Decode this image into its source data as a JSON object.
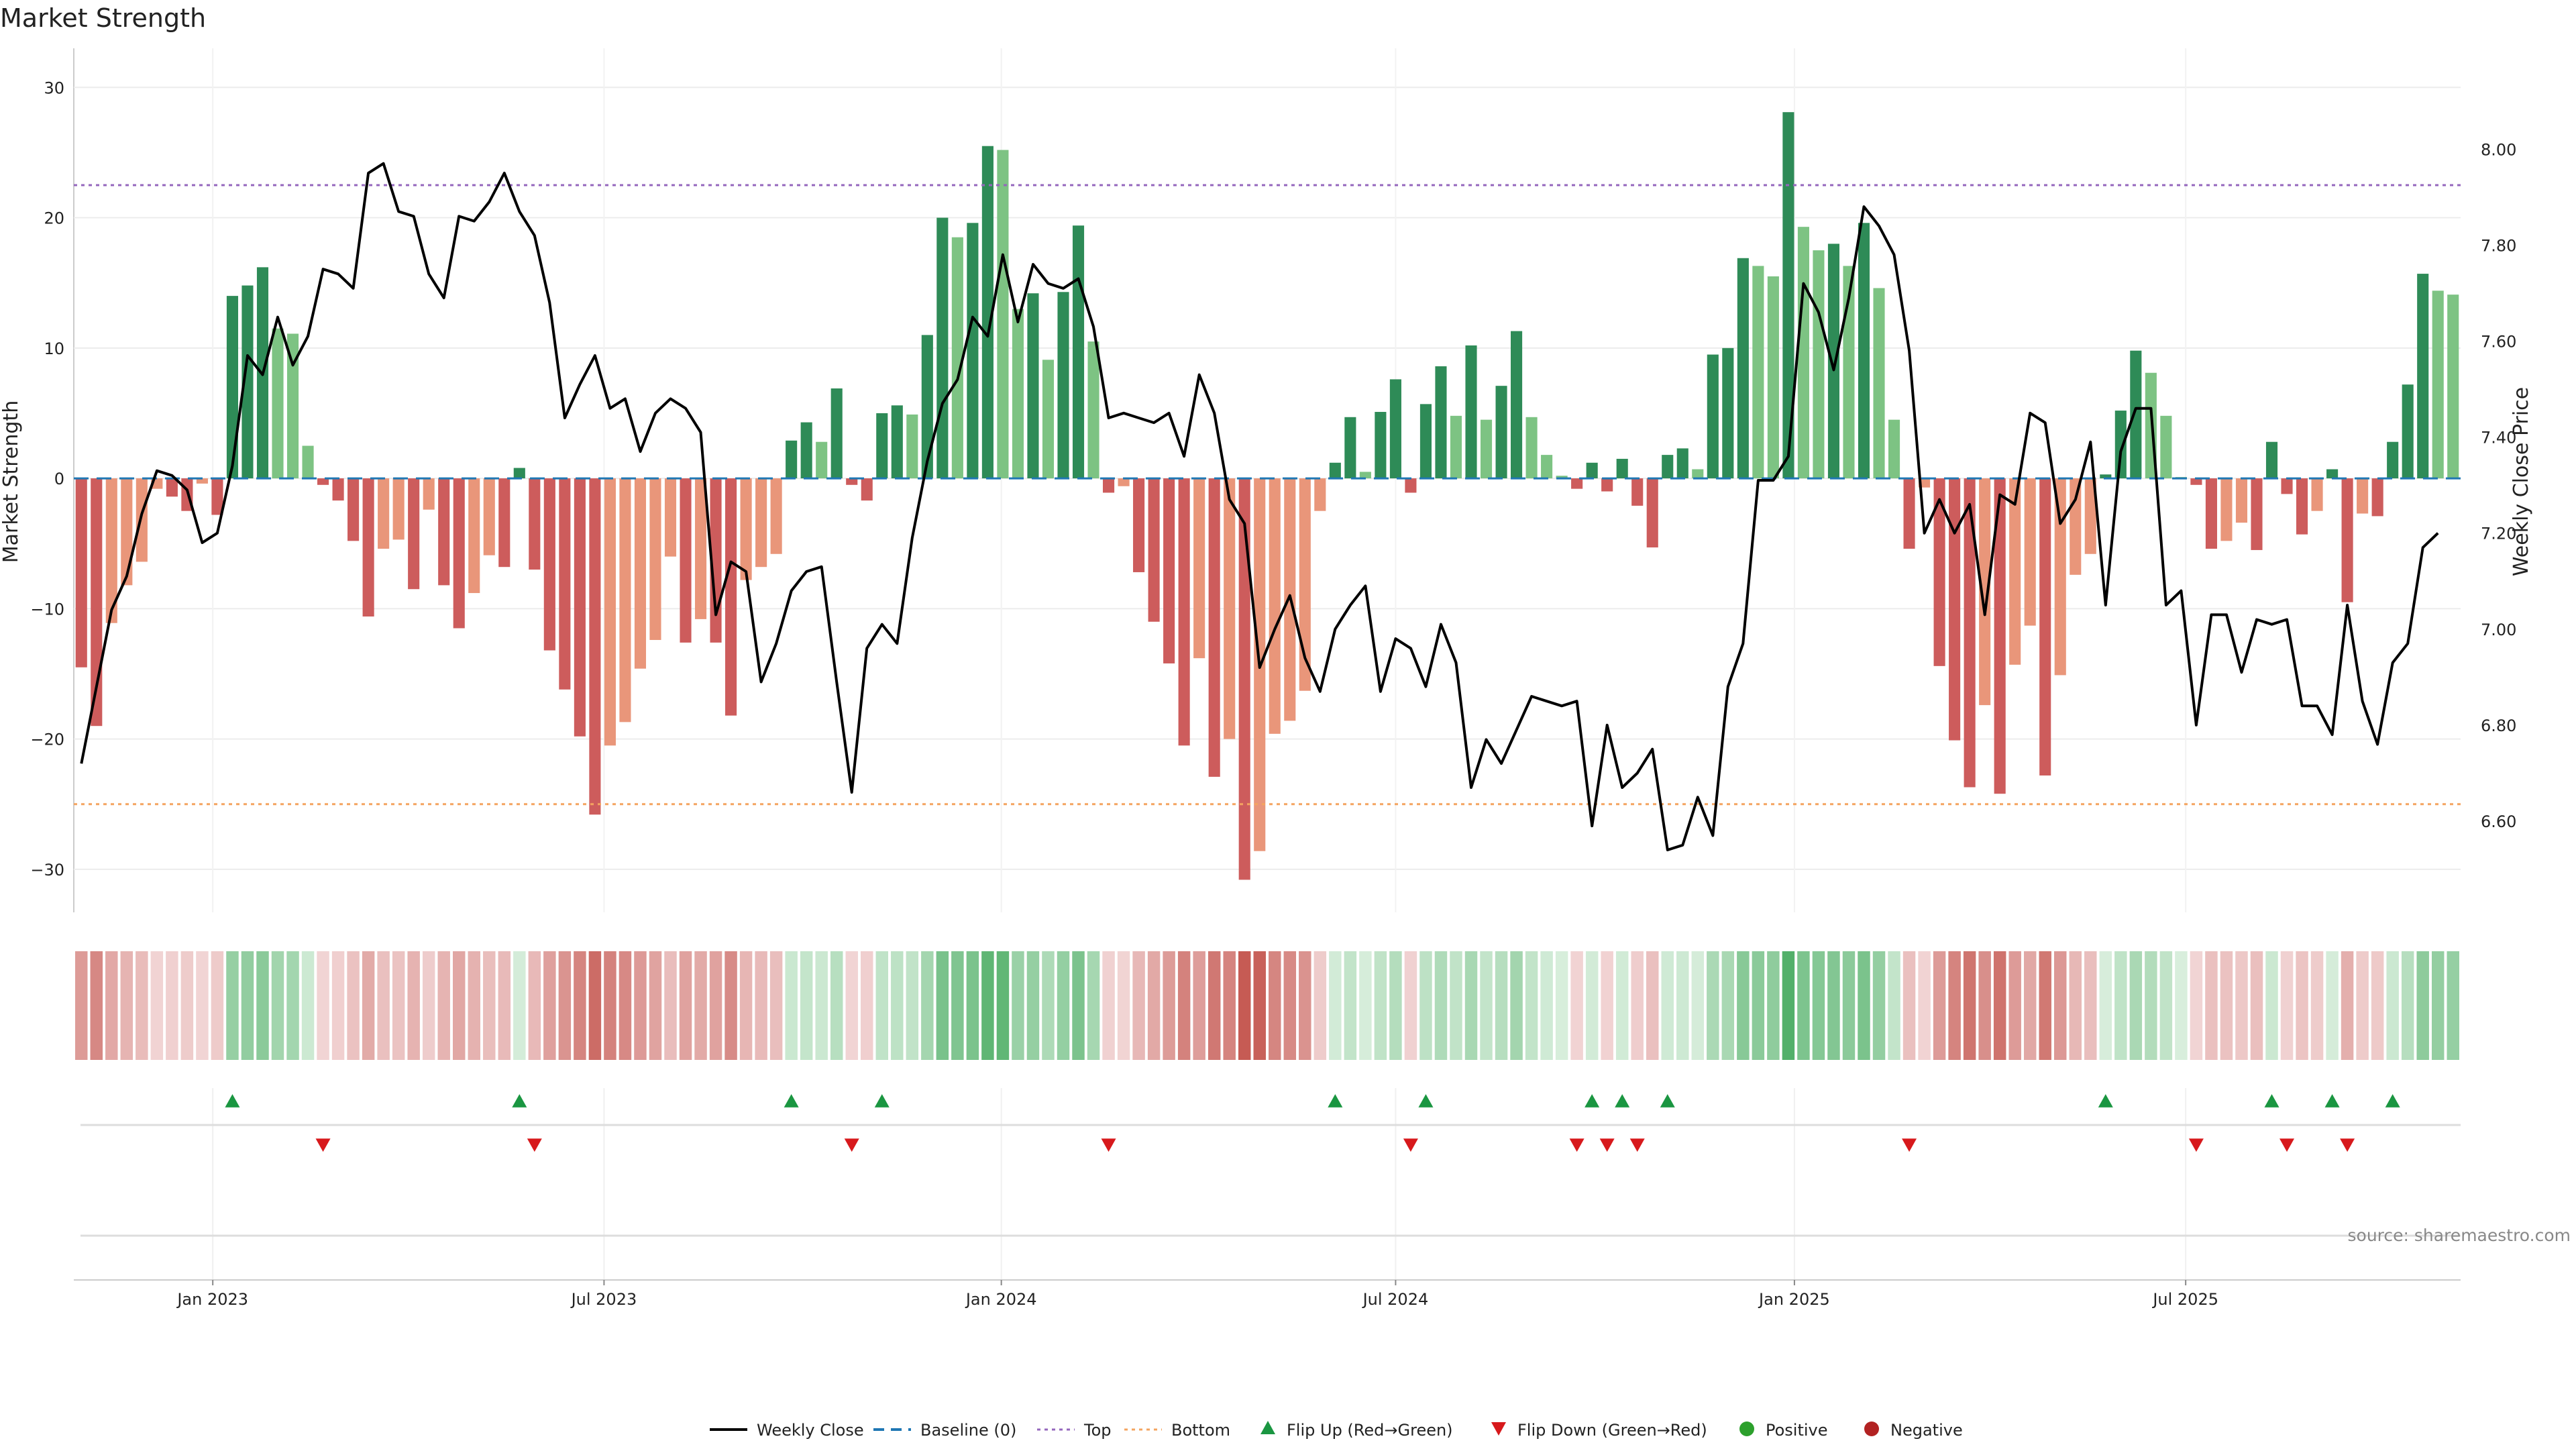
{
  "chart_data": {
    "type": "bar",
    "title": "Market Strength",
    "ylabel": "Market Strength",
    "y2label": "Weekly Close Price",
    "ylim": [
      -33.3,
      33.0
    ],
    "y2lim": [
      6.41,
      8.21
    ],
    "yticks": [
      -30,
      -20,
      -10,
      0,
      10,
      20,
      30
    ],
    "y2ticks": [
      "6.60",
      "6.80",
      "7.00",
      "7.20",
      "7.40",
      "7.60",
      "7.80",
      "8.00"
    ],
    "x_date_ticks": [
      {
        "label": "Jan 2023",
        "week": 9.2
      },
      {
        "label": "Jul 2023",
        "week": 35.1
      },
      {
        "label": "Jan 2024",
        "week": 61.4
      },
      {
        "label": "Jul 2024",
        "week": 87.5
      },
      {
        "label": "Jan 2025",
        "week": 113.9
      },
      {
        "label": "Jul 2025",
        "week": 139.8
      }
    ],
    "top_threshold": 22.5,
    "bottom_threshold": -25,
    "strength": [
      -14.5,
      -19,
      -11.1,
      -8.2,
      -6.4,
      -0.8,
      -1.4,
      -2.5,
      -0.4,
      -2.8,
      14,
      14.8,
      16.2,
      11.5,
      11.1,
      2.5,
      -0.5,
      -1.7,
      -4.8,
      -10.6,
      -5.4,
      -4.7,
      -8.5,
      -2.4,
      -8.2,
      -11.5,
      -8.8,
      -5.9,
      -6.8,
      0.8,
      -7,
      -13.2,
      -16.2,
      -19.8,
      -25.8,
      -20.5,
      -18.7,
      -14.6,
      -12.4,
      -6,
      -12.6,
      -10.8,
      -12.6,
      -18.2,
      -7.8,
      -6.8,
      -5.8,
      2.9,
      4.3,
      2.8,
      6.9,
      -0.5,
      -1.7,
      5,
      5.6,
      4.9,
      11,
      20,
      18.5,
      19.6,
      25.5,
      25.2,
      13,
      14.2,
      9.1,
      14.3,
      19.4,
      10.5,
      -1.1,
      -0.6,
      -7.2,
      -11,
      -14.2,
      -20.5,
      -13.8,
      -22.9,
      -20,
      -30.8,
      -28.6,
      -19.6,
      -18.6,
      -16.3,
      -2.5,
      1.2,
      4.7,
      0.5,
      5.1,
      7.6,
      -1.1,
      5.7,
      8.6,
      4.8,
      10.2,
      4.5,
      7.1,
      11.3,
      4.7,
      1.8,
      0.2,
      -0.8,
      1.2,
      -1,
      1.5,
      -2.1,
      -5.3,
      1.8,
      2.3,
      0.7,
      9.5,
      10,
      16.9,
      16.3,
      15.5,
      28.1,
      19.3,
      17.5,
      18,
      16.3,
      19.6,
      14.6,
      4.5,
      -5.4,
      -0.7,
      -14.4,
      -20.1,
      -23.7,
      -17.4,
      -24.2,
      -14.3,
      -11.3,
      -22.8,
      -15.1,
      -7.4,
      -5.8,
      0.3,
      5.2,
      9.8,
      8.1,
      4.8,
      0.1,
      -0.5,
      -5.4,
      -4.8,
      -3.4,
      -5.5,
      2.8,
      -1.2,
      -4.3,
      -2.5,
      0.7,
      -9.5,
      -2.7,
      -2.9,
      2.8,
      7.2,
      15.7,
      14.4,
      14.1
    ],
    "weekly_close": [
      6.72,
      6.88,
      7.04,
      7.11,
      7.24,
      7.33,
      7.32,
      7.29,
      7.18,
      7.2,
      7.34,
      7.57,
      7.53,
      7.65,
      7.55,
      7.61,
      7.75,
      7.74,
      7.71,
      7.95,
      7.97,
      7.87,
      7.86,
      7.74,
      7.69,
      7.86,
      7.85,
      7.89,
      7.95,
      7.87,
      7.82,
      7.68,
      7.44,
      7.51,
      7.57,
      7.46,
      7.48,
      7.37,
      7.45,
      7.48,
      7.46,
      7.41,
      7.03,
      7.14,
      7.12,
      6.89,
      6.97,
      7.08,
      7.12,
      7.13,
      6.89,
      6.66,
      6.96,
      7.01,
      6.97,
      7.19,
      7.35,
      7.47,
      7.52,
      7.65,
      7.61,
      7.78,
      7.64,
      7.76,
      7.72,
      7.71,
      7.73,
      7.63,
      7.44,
      7.45,
      7.44,
      7.43,
      7.45,
      7.36,
      7.53,
      7.45,
      7.27,
      7.22,
      6.92,
      7.0,
      7.07,
      6.94,
      6.87,
      7.0,
      7.05,
      7.09,
      6.87,
      6.98,
      6.96,
      6.88,
      7.01,
      6.93,
      6.67,
      6.77,
      6.72,
      6.79,
      6.86,
      6.85,
      6.84,
      6.85,
      6.59,
      6.8,
      6.67,
      6.7,
      6.75,
      6.54,
      6.55,
      6.65,
      6.57,
      6.88,
      6.97,
      7.31,
      7.31,
      7.36,
      7.72,
      7.66,
      7.54,
      7.69,
      7.88,
      7.84,
      7.78,
      7.58,
      7.2,
      7.27,
      7.2,
      7.26,
      7.03,
      7.28,
      7.26,
      7.45,
      7.43,
      7.22,
      7.27,
      7.39,
      7.05,
      7.37,
      7.46,
      7.46,
      7.05,
      7.08,
      6.8,
      7.03,
      7.03,
      6.91,
      7.02,
      7.01,
      7.02,
      6.84,
      6.84,
      6.78,
      7.05,
      6.85,
      6.76,
      6.93,
      6.97,
      7.17,
      7.2
    ]
  },
  "legend": [
    {
      "key": "weekly_close",
      "label": "Weekly Close"
    },
    {
      "key": "baseline",
      "label": "Baseline (0)"
    },
    {
      "key": "top",
      "label": "Top"
    },
    {
      "key": "bottom",
      "label": "Bottom"
    },
    {
      "key": "flip_up",
      "label": "Flip Up (Red→Green)"
    },
    {
      "key": "flip_down",
      "label": "Flip Down (Green→Red)"
    },
    {
      "key": "positive",
      "label": "Positive"
    },
    {
      "key": "negative",
      "label": "Negative"
    }
  ],
  "source": "source: sharemaestro.com",
  "colors": {
    "pos_dark": "#2e8b57",
    "pos_light": "#7dc383",
    "neg_dark": "#cd5c5c",
    "neg_light": "#e9967a",
    "close_line": "#000000",
    "baseline": "#1f77b4",
    "top": "#9467bd",
    "bottom": "#f4a460",
    "flip_up": "#1a9641",
    "flip_down": "#d7191c",
    "positive_dot": "#2ca02c",
    "negative_dot": "#b22222"
  }
}
